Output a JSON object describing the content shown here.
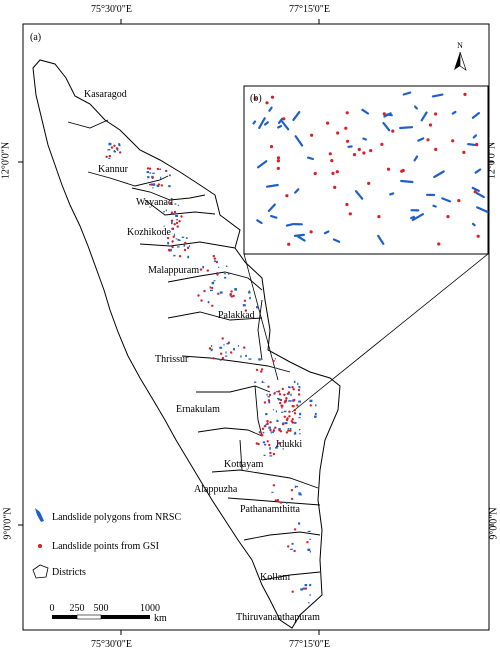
{
  "coords": {
    "top_left": "75°30'0\"E",
    "top_right": "77°15'0\"E",
    "bottom_left": "75°30'0\"E",
    "bottom_right": "77°15'0\"E",
    "left_upper": "12°0'0\"N",
    "left_lower": "9°0'0\"N",
    "right_upper": "12°0'0\"N",
    "right_lower": "9°0'0\"N"
  },
  "panel_a_label": "(a)",
  "panel_b_label": "(b)",
  "north_label": "N",
  "districts": [
    "Kasaragod",
    "Kannur",
    "Wayanad",
    "Kozhikode",
    "Malappuram",
    "Palakkad",
    "Thrissur",
    "Ernakulam",
    "Idukki",
    "Kottayam",
    "Alappuzha",
    "Pathanamthitta",
    "Kollam",
    "Thiruvananthapuram"
  ],
  "legend": {
    "polygons": "Landslide polygons from NRSC",
    "points": "Landslide points from GSI",
    "districts": "Districts"
  },
  "scale": {
    "ticks": [
      "0",
      "250",
      "500",
      "1000"
    ],
    "unit": "km"
  },
  "colors": {
    "polygon_blue": "#1f5fc8",
    "point_red": "#d8202a",
    "boundary": "#000000"
  }
}
